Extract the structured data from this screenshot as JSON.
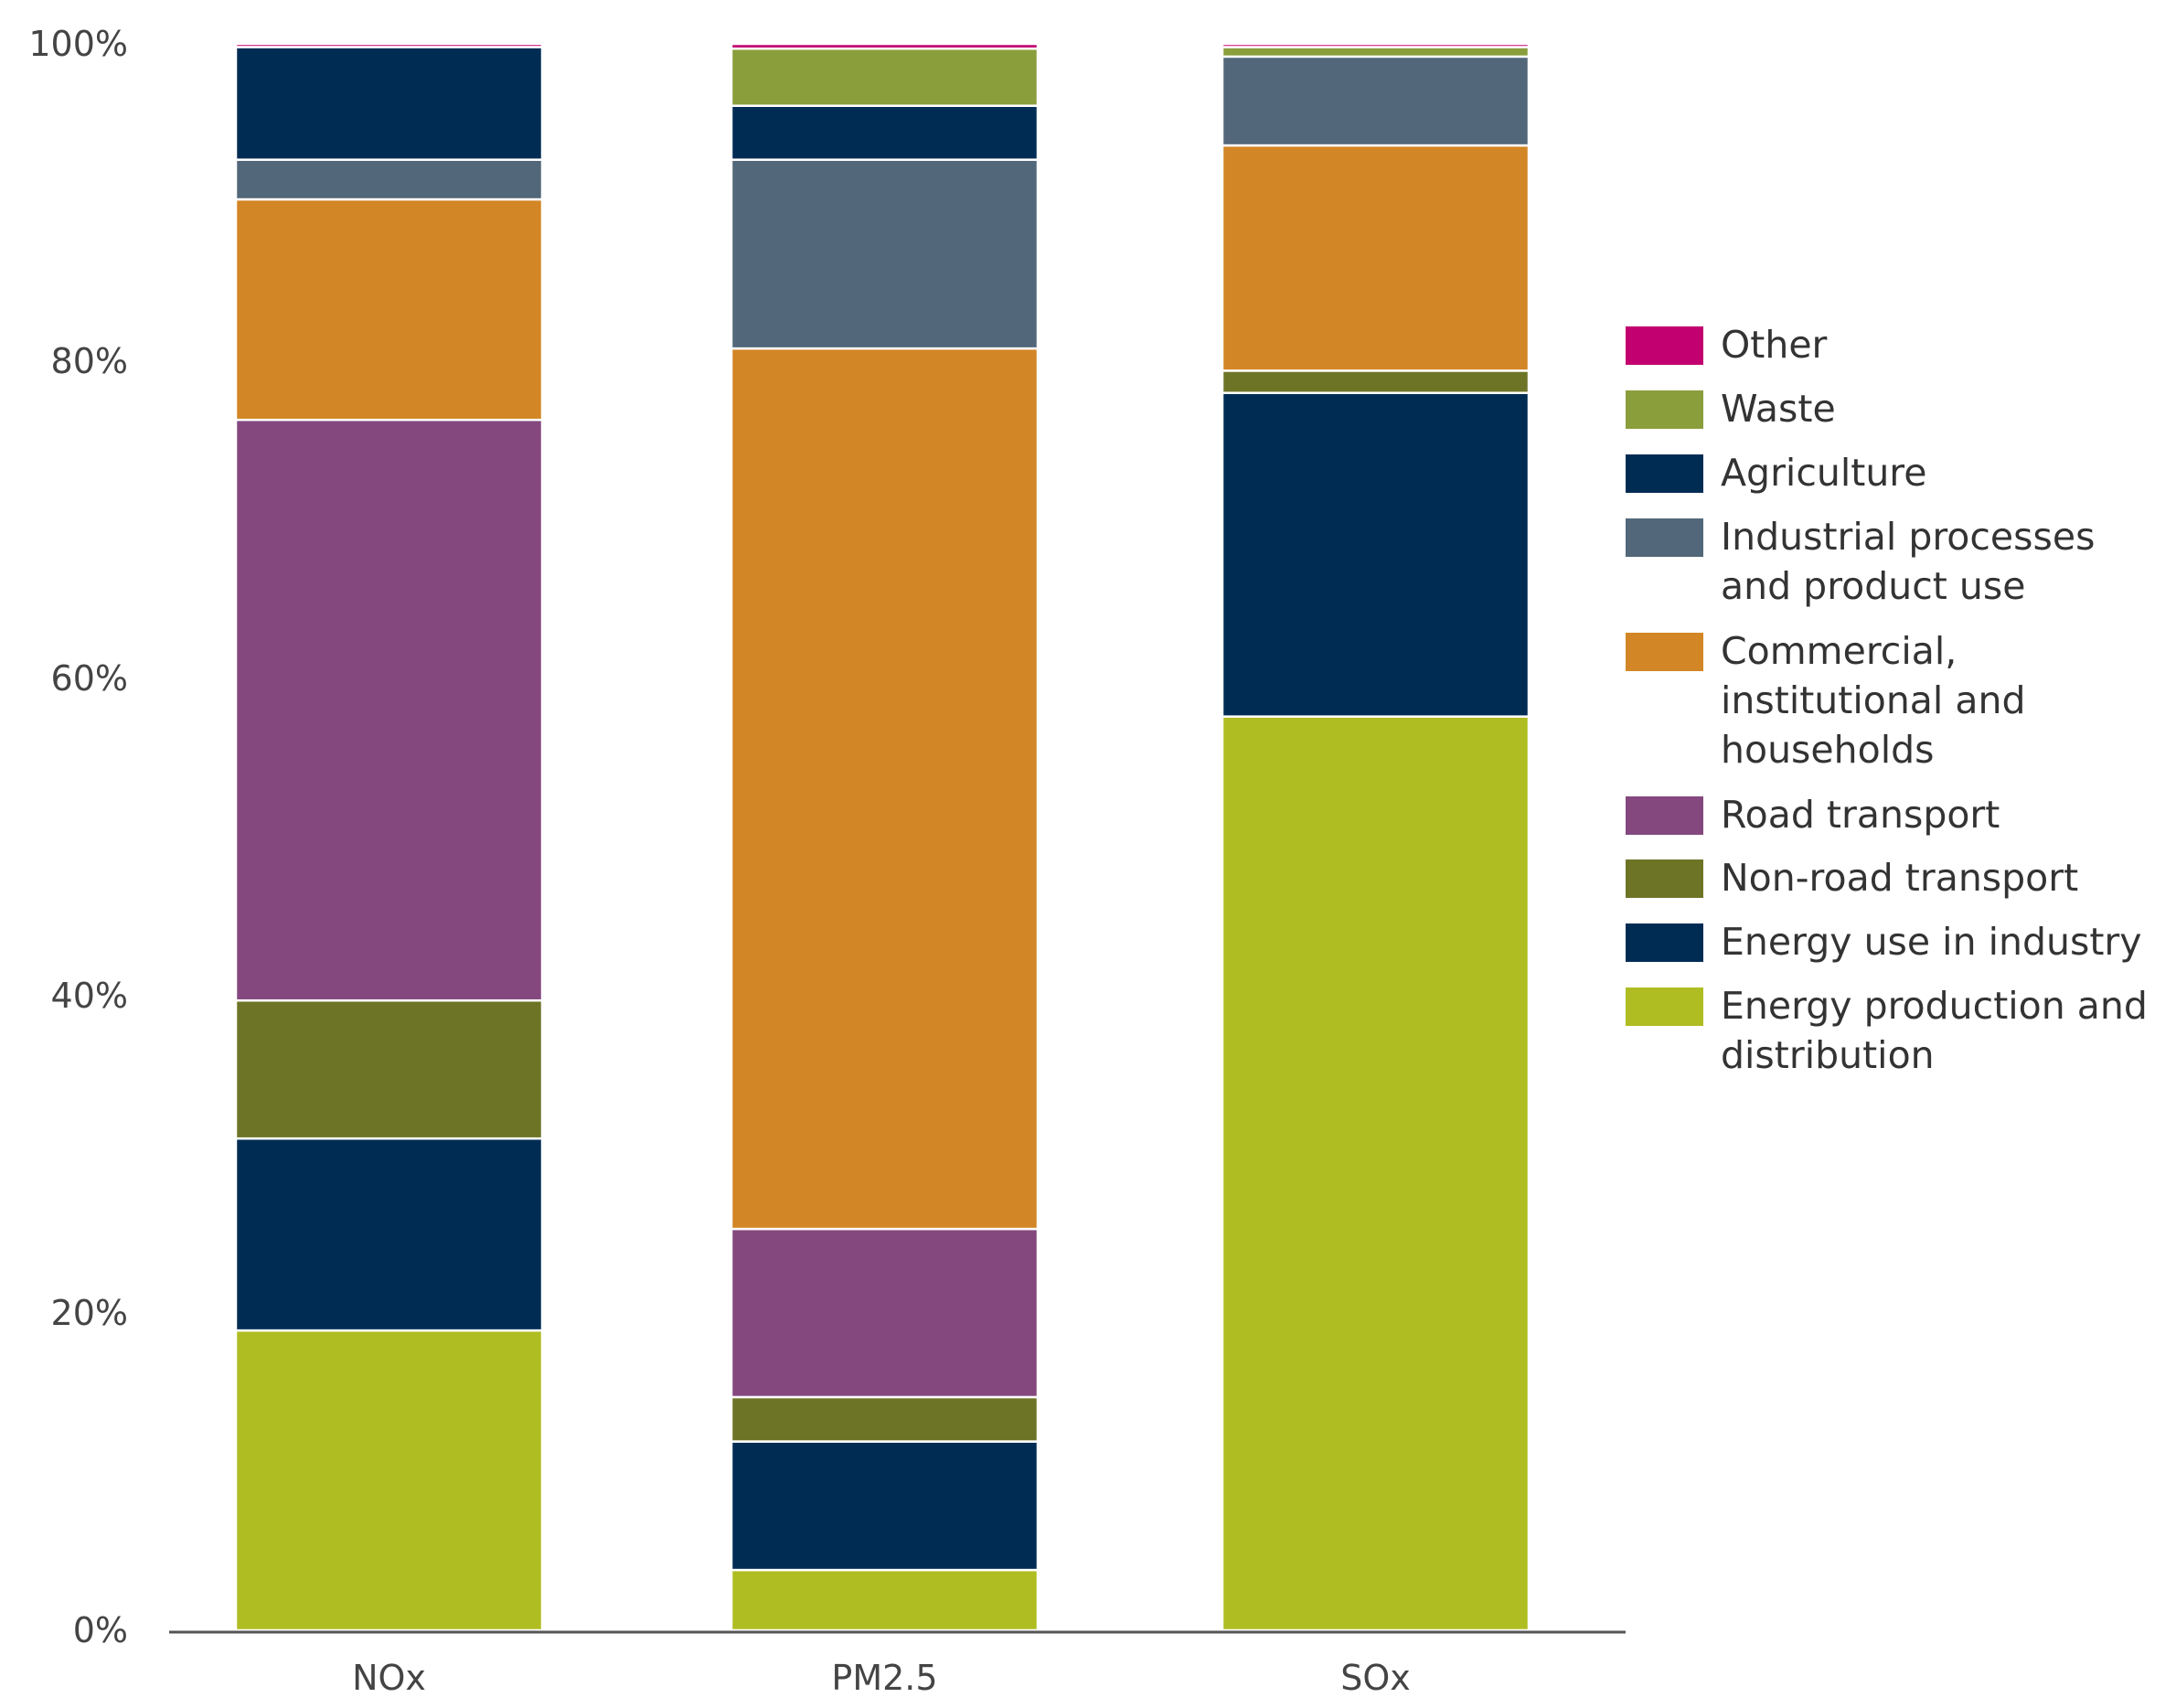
{
  "chart_data": {
    "type": "bar",
    "stacked": true,
    "title": "",
    "xlabel": "",
    "ylabel": "",
    "ylim": [
      0,
      100
    ],
    "yticks": [
      "0%",
      "20%",
      "40%",
      "60%",
      "80%",
      "100%"
    ],
    "categories": [
      "NOx",
      "PM2.5",
      "SOx"
    ],
    "legend_position": "right",
    "series": [
      {
        "name": "Energy production and distribution",
        "color": "#afbd22",
        "values": [
          18.9,
          3.8,
          57.6
        ]
      },
      {
        "name": "Energy use in industry",
        "color": "#002c54",
        "values": [
          12.1,
          8.1,
          20.4
        ]
      },
      {
        "name": "Non-road transport",
        "color": "#6d7426",
        "values": [
          8.7,
          2.8,
          1.4
        ]
      },
      {
        "name": "Road transport",
        "color": "#84487f",
        "values": [
          36.6,
          10.6,
          0.0
        ]
      },
      {
        "name": "Commercial, institutional and households",
        "color": "#d38625",
        "values": [
          13.9,
          55.5,
          14.2
        ]
      },
      {
        "name": "Industrial processes and product use",
        "color": "#526779",
        "values": [
          2.5,
          11.9,
          5.6
        ]
      },
      {
        "name": "Agriculture",
        "color": "#002c54",
        "values": [
          7.1,
          3.4,
          0.0
        ]
      },
      {
        "name": "Waste",
        "color": "#8a9e3c",
        "values": [
          0.0,
          3.6,
          0.6
        ]
      },
      {
        "name": "Other",
        "color": "#c2006f",
        "values": [
          0.2,
          0.3,
          0.2
        ]
      }
    ],
    "legend": [
      {
        "name": "Other",
        "lines": [
          "Other"
        ]
      },
      {
        "name": "Waste",
        "lines": [
          "Waste"
        ]
      },
      {
        "name": "Agriculture",
        "lines": [
          "Agriculture"
        ]
      },
      {
        "name": "Industrial processes and product use",
        "lines": [
          "Industrial processes",
          "and product use"
        ]
      },
      {
        "name": "Commercial, institutional and households",
        "lines": [
          "Commercial,",
          "institutional and",
          "households"
        ]
      },
      {
        "name": "Road transport",
        "lines": [
          "Road transport"
        ]
      },
      {
        "name": "Non-road transport",
        "lines": [
          "Non-road transport"
        ]
      },
      {
        "name": "Energy use in industry",
        "lines": [
          "Energy use in industry"
        ]
      },
      {
        "name": "Energy production and distribution",
        "lines": [
          "Energy production and",
          "distribution"
        ]
      }
    ]
  }
}
